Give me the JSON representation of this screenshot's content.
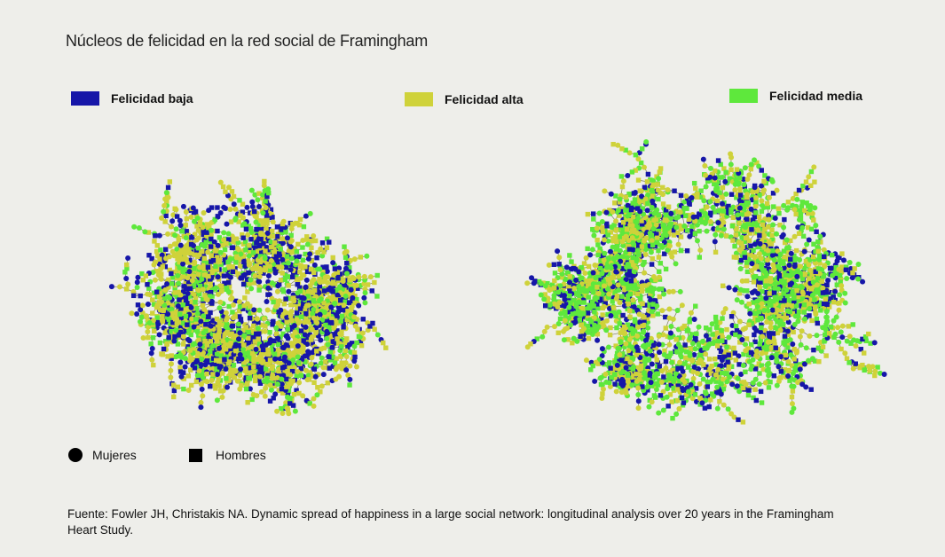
{
  "title": "Núcleos de felicidad en la red social de Framingham",
  "legend": {
    "baja": {
      "label": "Felicidad baja",
      "color": "#1616a8"
    },
    "alta": {
      "label": "Felicidad alta",
      "color": "#cfd23a"
    },
    "media": {
      "label": "Felicidad media",
      "color": "#5ee83c"
    }
  },
  "shape_legend": {
    "mujeres": "Mujeres",
    "hombres": "Hombres"
  },
  "source": "Fuente: Fowler JH, Christakis NA. Dynamic spread of happiness in a large social network: longitudinal analysis over 20 years in the Framingham Heart Study."
}
